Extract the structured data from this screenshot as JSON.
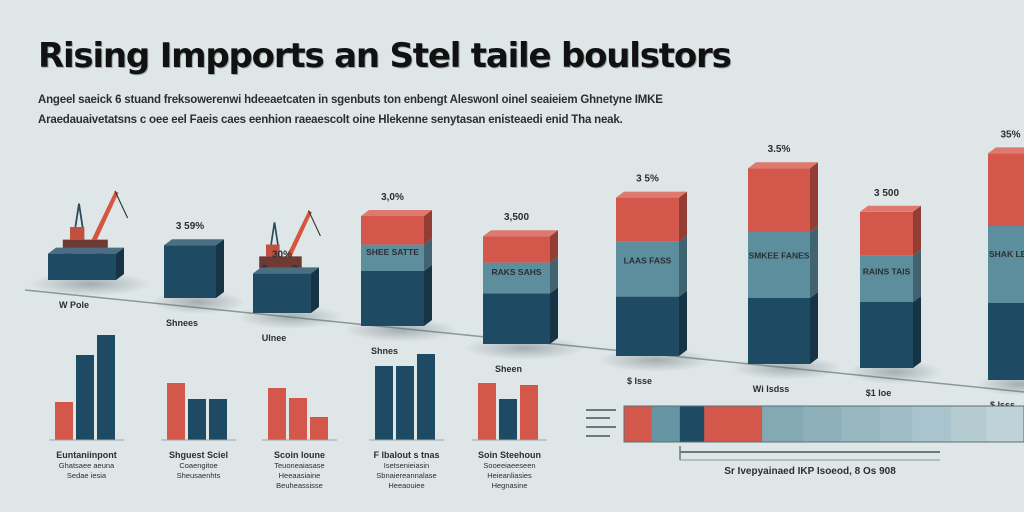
{
  "title": "Rising Impports an Stel taile boulstors",
  "subtitle_lines": [
    "Angeel saeick 6 stuand freksowerenwi hdeeaetcaten in sgenbuts ton enbengt Aleswonl oinel seaieiem Ghnetyne IMKE",
    "Araedauaivetatsns c oee eel Faeis caes eenhion raeaescolt oine Hlekenne senytasan enisteaedi enid Tha neak."
  ],
  "colors": {
    "navy": "#1f4a63",
    "teal": "#5c8e9e",
    "red": "#d4574b",
    "background": "#dfe6e7"
  },
  "chart_data": [
    {
      "type": "bar",
      "style": "3d-stacked",
      "value_labels": [
        "3 59%",
        "30%",
        "3,0%",
        "3,500",
        "3 5%",
        "3.5%",
        "3 500",
        "35%"
      ],
      "category_labels": [
        "W Pole",
        "Shnees",
        "Ulnee",
        "Shnes",
        "Sheen",
        "$ Isse",
        "Wi Isdss",
        "$1 loe",
        "$ Isss"
      ],
      "inner_labels": [
        "SHEE SATTE",
        "RAKS SAHS",
        "LAAS FASS",
        "SMKEE FANES",
        "RAINS TAIS",
        "SHAK LEE"
      ],
      "stacks": [
        {
          "navy": 1.2,
          "teal": 0,
          "red": 0
        },
        {
          "navy": 2.4,
          "teal": 0,
          "red": 0
        },
        {
          "navy": 1.8,
          "teal": 0,
          "red": 0
        },
        {
          "navy": 2.5,
          "teal": 1.2,
          "red": 1.3
        },
        {
          "navy": 2.3,
          "teal": 1.4,
          "red": 1.2
        },
        {
          "navy": 2.7,
          "teal": 2.5,
          "red": 2.0
        },
        {
          "navy": 3.0,
          "teal": 3.0,
          "red": 2.9
        },
        {
          "navy": 3.0,
          "teal": 2.1,
          "red": 2.0
        },
        {
          "navy": 3.5,
          "teal": 3.5,
          "red": 3.3
        }
      ]
    },
    {
      "type": "bar",
      "groups": [
        {
          "label": [
            "Euntaniinpont",
            "Ghatsaee aeuna",
            "Sedae iesia"
          ],
          "series": [
            {
              "color": "red",
              "value": 38
            },
            {
              "color": "navy",
              "value": 85
            },
            {
              "color": "navy",
              "value": 105
            }
          ]
        },
        {
          "label": [
            "Shguest Sciel",
            "Coaengitoe",
            "Sheusaenhts"
          ],
          "series": [
            {
              "color": "red",
              "value": 57
            },
            {
              "color": "navy",
              "value": 41
            },
            {
              "color": "navy",
              "value": 41
            }
          ]
        },
        {
          "label": [
            "Scoin loune",
            "Teuoneaiasase",
            "Heeaasiaine",
            "Beuheassisse"
          ],
          "series": [
            {
              "color": "red",
              "value": 52
            },
            {
              "color": "red",
              "value": 42
            },
            {
              "color": "red",
              "value": 23
            }
          ]
        },
        {
          "label": [
            "F lbalout s tnas",
            "Isetsenieiasin",
            "Sbnaiereannalase",
            "Heeaouiee"
          ],
          "series": [
            {
              "color": "navy",
              "value": 74
            },
            {
              "color": "navy",
              "value": 74
            },
            {
              "color": "navy",
              "value": 86
            }
          ]
        },
        {
          "label": [
            "Soin Steehoun",
            "Sooeeiaeeseen",
            "Heieanliasies",
            "Hegnasine"
          ],
          "series": [
            {
              "color": "red",
              "value": 57
            },
            {
              "color": "navy",
              "value": 41
            },
            {
              "color": "red",
              "value": 55
            }
          ]
        }
      ]
    },
    {
      "type": "bar",
      "style": "strip",
      "segments": [
        {
          "color": "red",
          "share": 27
        },
        {
          "color": "teal",
          "share": 28
        },
        {
          "color": "navy",
          "share": 24
        },
        {
          "color": "red",
          "share": 57
        },
        {
          "color": "teal",
          "share": 40
        },
        {
          "color": "teal",
          "share": 38
        },
        {
          "color": "teal",
          "share": 38
        },
        {
          "color": "teal",
          "share": 32
        },
        {
          "color": "teal",
          "share": 38
        },
        {
          "color": "teal",
          "share": 35
        },
        {
          "color": "teal",
          "share": 37
        }
      ],
      "footer": "Sr Ivepyainaed IKP Isoeod, 8 Os 908"
    }
  ]
}
